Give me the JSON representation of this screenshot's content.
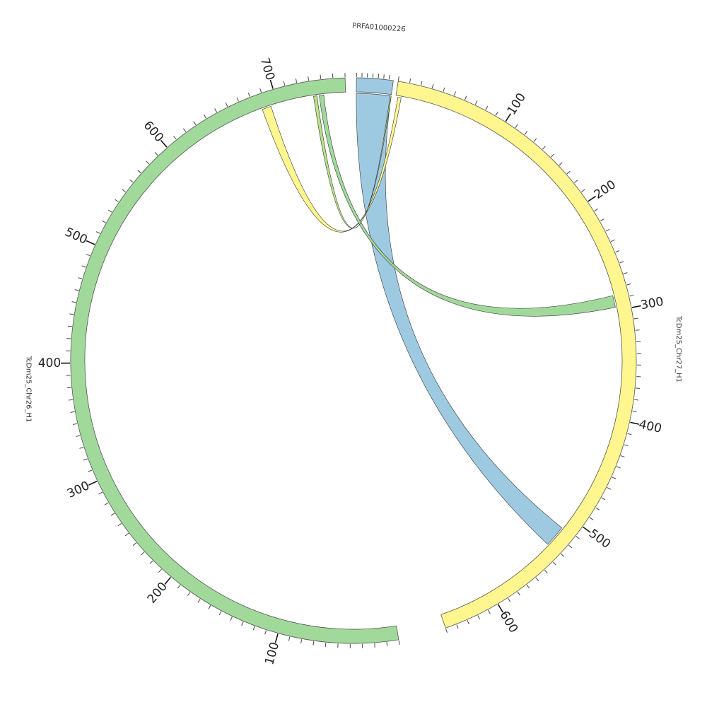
{
  "segments": [
    {
      "id": "seg0",
      "name": "PRFA01000226",
      "length": 68,
      "color": "#9ecae1",
      "start_deg": 0.6,
      "end_deg": 8.1
    },
    {
      "id": "seg1",
      "name": "TcDm25_Chr27_H1",
      "length": 650,
      "color": "#fff68f",
      "start_deg": 9.1,
      "end_deg": 161.0
    },
    {
      "id": "seg2",
      "name": "TcDm25_Chr26_H1",
      "length": 760,
      "color": "#a1d99b",
      "start_deg": 170.8,
      "end_deg": 358.3
    }
  ],
  "tick_labels": {
    "seg1": [
      "100",
      "200",
      "300",
      "400",
      "500",
      "600"
    ],
    "seg2": [
      "100",
      "200",
      "300",
      "400",
      "500",
      "600",
      "700"
    ]
  },
  "links": [
    {
      "from": "seg0",
      "from_range": [
        0,
        68
      ],
      "to": "seg1",
      "to_range": [
        512,
        532
      ],
      "color": "#9ecae1"
    },
    {
      "from": "seg1",
      "from_range": [
        2,
        5
      ],
      "to": "seg2",
      "to_range": [
        686,
        694
      ],
      "color": "#fff68f"
    },
    {
      "from": "seg2",
      "from_range": [
        737,
        741
      ],
      "to": "seg1",
      "to_range": [
        286,
        297
      ],
      "color": "#a1d99b"
    },
    {
      "from": "seg2",
      "from_range": [
        732,
        735
      ],
      "to": "seg0",
      "from_note": "",
      "to_range": [
        66,
        68
      ],
      "color": "#b8e186"
    }
  ]
}
